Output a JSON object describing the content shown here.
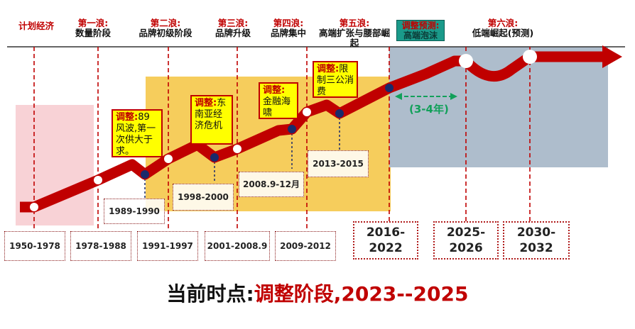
{
  "colors": {
    "arrow": "#c00000",
    "guide": "#c00000",
    "pink_zone": "#f8d2d6",
    "yellow_zone": "#f5c84a",
    "blue_zone": "#aebdcc",
    "note_bg": "#ffff00",
    "node_dark": "#1a2a6b",
    "duration": "#12a05a"
  },
  "planned_economy": "计划经济",
  "waves": [
    {
      "name": "第一浪:",
      "desc": "数量阶段"
    },
    {
      "name": "第二浪:",
      "desc": "品牌初级阶段"
    },
    {
      "name": "第三浪:",
      "desc": "品牌升级"
    },
    {
      "name": "第四浪:",
      "desc": "品牌集中"
    },
    {
      "name": "第五浪:",
      "desc": "高端扩张与腰部崛起"
    },
    {
      "name": "调整预测:",
      "desc": "高端泡沫"
    },
    {
      "name": "第六浪:",
      "desc": "低端崛起(预测)"
    }
  ],
  "notes": [
    {
      "key": "调整:",
      "text": "89风波,第一次供大于求。"
    },
    {
      "key": "调整:",
      "text": "东南亚经济危机"
    },
    {
      "key": "调整:",
      "text": "金融海啸"
    },
    {
      "key": "调整:",
      "text": "限制三公消费"
    }
  ],
  "adjust_periods": [
    "1989-1990",
    "1998-2000",
    "2008.9-12月",
    "2013-2015"
  ],
  "periods": [
    "1950-1978",
    "1978-1988",
    "1991-1997",
    "2001-2008.9",
    "2009-2012",
    "2016-2022",
    "2025-2026",
    "2030-2032"
  ],
  "duration_label": "(3-4年)",
  "footer": {
    "key": "当前时点:",
    "value": "调整阶段,2023--2025"
  }
}
